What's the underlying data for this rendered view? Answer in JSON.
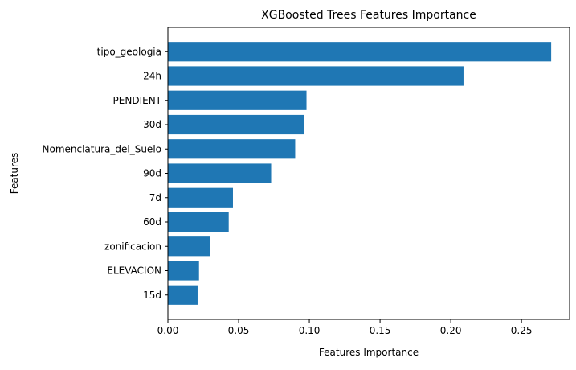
{
  "chart_data": {
    "type": "bar",
    "orientation": "horizontal",
    "title": "XGBoosted Trees Features Importance",
    "xlabel": "Features Importance",
    "ylabel": "Features",
    "categories": [
      "tipo_geologia",
      "24h",
      "PENDIENT",
      "30d",
      "Nomenclatura_del_Suelo",
      "90d",
      "7d",
      "60d",
      "zonificacion",
      "ELEVACION",
      "15d"
    ],
    "values": [
      0.271,
      0.209,
      0.098,
      0.096,
      0.09,
      0.073,
      0.046,
      0.043,
      0.03,
      0.022,
      0.021
    ],
    "xlim": [
      0,
      0.284
    ],
    "xticks": [
      0,
      0.05,
      0.1,
      0.15,
      0.2,
      0.25
    ],
    "xtick_labels": [
      "0.00",
      "0.05",
      "0.10",
      "0.15",
      "0.20",
      "0.25"
    ],
    "bar_color": "#1f77b4",
    "grid": false,
    "legend": false
  }
}
